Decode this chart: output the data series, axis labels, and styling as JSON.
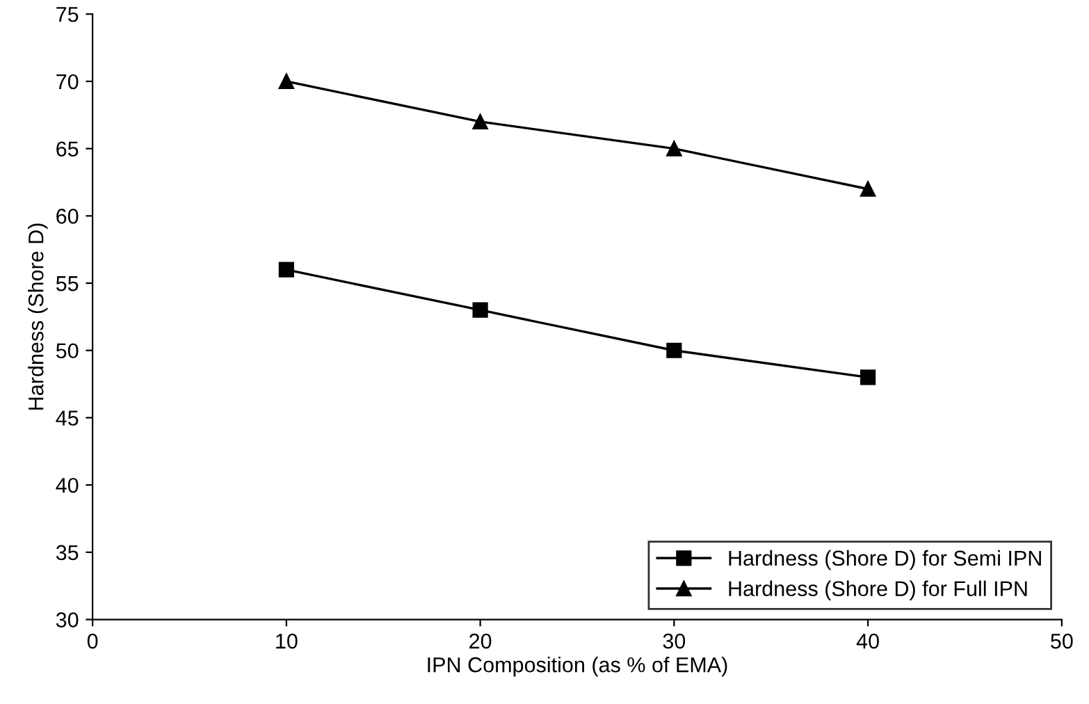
{
  "chart_data": {
    "type": "line",
    "xlabel": "IPN Composition (as % of EMA)",
    "ylabel": "Hardness (Shore D)",
    "x": [
      10,
      20,
      30,
      40
    ],
    "series": [
      {
        "name": "Hardness (Shore D) for Semi IPN",
        "color": "#000000",
        "marker": "square",
        "values": [
          56,
          53,
          50,
          48
        ]
      },
      {
        "name": "Hardness (Shore D) for Full IPN",
        "color": "#000000",
        "marker": "triangle",
        "values": [
          70,
          67,
          65,
          62
        ]
      }
    ],
    "xlim": [
      0,
      50
    ],
    "xticks": [
      0,
      10,
      20,
      30,
      40,
      50
    ],
    "ylim": [
      30,
      75
    ],
    "yticks": [
      30,
      35,
      40,
      45,
      50,
      55,
      60,
      65,
      70,
      75
    ],
    "grid": false,
    "legend": "bottom right",
    "line_style": "solid"
  }
}
